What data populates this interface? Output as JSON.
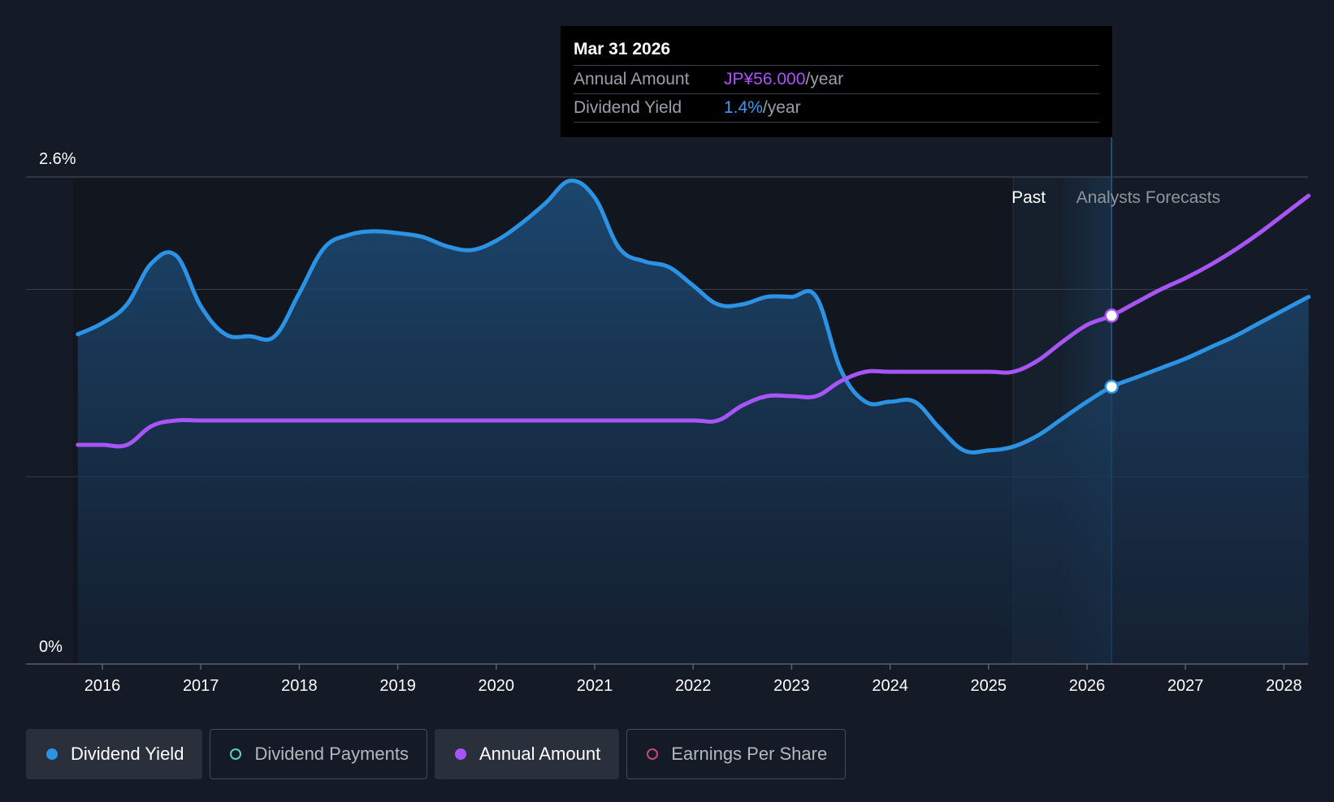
{
  "tooltip": {
    "date": "Mar 31 2026",
    "annual_amount_label": "Annual Amount",
    "annual_amount_value": "JP¥56.000",
    "dividend_yield_label": "Dividend Yield",
    "dividend_yield_value": "1.4%",
    "unit": "/year"
  },
  "legend": [
    {
      "label": "Dividend Yield",
      "color": "#2b92e4",
      "filled": true,
      "active": true
    },
    {
      "label": "Dividend Payments",
      "color": "#5ed0c0",
      "filled": false,
      "active": false
    },
    {
      "label": "Annual Amount",
      "color": "#a855f7",
      "filled": true,
      "active": true
    },
    {
      "label": "Earnings Per Share",
      "color": "#c8467a",
      "filled": false,
      "active": false
    }
  ],
  "colors": {
    "yield_line": "#2b92e4",
    "amount_line": "#a855f7",
    "grid": "#3a404b",
    "axis": "#5a606a",
    "text": "#ffffff"
  },
  "chart_data": {
    "type": "line",
    "title": "",
    "xlabel": "",
    "ylabel": "",
    "ylim": [
      0,
      2.6
    ],
    "y_tick_labels": [
      "0%",
      "2.6%"
    ],
    "x_ticks": [
      2016,
      2017,
      2018,
      2019,
      2020,
      2021,
      2022,
      2023,
      2024,
      2025,
      2026,
      2027,
      2028
    ],
    "xlim": [
      2015.75,
      2028.25
    ],
    "past_label": "Past",
    "forecast_label": "Analysts Forecasts",
    "past_end": 2025.25,
    "forecast_start": 2025.75,
    "marker_x": 2026.25,
    "series": [
      {
        "name": "Dividend Yield",
        "unit": "%",
        "area": true,
        "points": [
          [
            2015.75,
            1.76
          ],
          [
            2016.0,
            1.82
          ],
          [
            2016.25,
            1.92
          ],
          [
            2016.5,
            2.14
          ],
          [
            2016.75,
            2.18
          ],
          [
            2017.0,
            1.91
          ],
          [
            2017.25,
            1.76
          ],
          [
            2017.5,
            1.75
          ],
          [
            2017.75,
            1.75
          ],
          [
            2018.0,
            1.98
          ],
          [
            2018.25,
            2.22
          ],
          [
            2018.5,
            2.29
          ],
          [
            2018.75,
            2.31
          ],
          [
            2019.0,
            2.3
          ],
          [
            2019.25,
            2.28
          ],
          [
            2019.5,
            2.23
          ],
          [
            2019.75,
            2.21
          ],
          [
            2020.0,
            2.26
          ],
          [
            2020.25,
            2.35
          ],
          [
            2020.5,
            2.46
          ],
          [
            2020.75,
            2.58
          ],
          [
            2021.0,
            2.49
          ],
          [
            2021.25,
            2.22
          ],
          [
            2021.5,
            2.15
          ],
          [
            2021.75,
            2.12
          ],
          [
            2022.0,
            2.02
          ],
          [
            2022.25,
            1.92
          ],
          [
            2022.5,
            1.92
          ],
          [
            2022.75,
            1.96
          ],
          [
            2023.0,
            1.96
          ],
          [
            2023.25,
            1.96
          ],
          [
            2023.5,
            1.57
          ],
          [
            2023.75,
            1.4
          ],
          [
            2024.0,
            1.4
          ],
          [
            2024.25,
            1.4
          ],
          [
            2024.5,
            1.26
          ],
          [
            2024.75,
            1.14
          ],
          [
            2025.0,
            1.14
          ],
          [
            2025.25,
            1.16
          ],
          [
            2025.5,
            1.22
          ],
          [
            2025.75,
            1.31
          ],
          [
            2026.0,
            1.4
          ],
          [
            2026.25,
            1.48
          ],
          [
            2026.5,
            1.53
          ],
          [
            2026.75,
            1.58
          ],
          [
            2027.0,
            1.63
          ],
          [
            2027.25,
            1.69
          ],
          [
            2027.5,
            1.75
          ],
          [
            2027.75,
            1.82
          ],
          [
            2028.0,
            1.89
          ],
          [
            2028.25,
            1.96
          ]
        ]
      },
      {
        "name": "Annual Amount",
        "unit": "JP¥",
        "area": false,
        "points": [
          [
            2015.75,
            1.17
          ],
          [
            2016.0,
            1.17
          ],
          [
            2016.25,
            1.17
          ],
          [
            2016.5,
            1.27
          ],
          [
            2016.75,
            1.3
          ],
          [
            2017.0,
            1.3
          ],
          [
            2017.5,
            1.3
          ],
          [
            2018.0,
            1.3
          ],
          [
            2018.5,
            1.3
          ],
          [
            2019.0,
            1.3
          ],
          [
            2019.5,
            1.3
          ],
          [
            2020.0,
            1.3
          ],
          [
            2020.5,
            1.3
          ],
          [
            2021.0,
            1.3
          ],
          [
            2021.5,
            1.3
          ],
          [
            2022.0,
            1.3
          ],
          [
            2022.25,
            1.3
          ],
          [
            2022.5,
            1.38
          ],
          [
            2022.75,
            1.43
          ],
          [
            2023.0,
            1.43
          ],
          [
            2023.25,
            1.43
          ],
          [
            2023.5,
            1.51
          ],
          [
            2023.75,
            1.56
          ],
          [
            2024.0,
            1.56
          ],
          [
            2024.5,
            1.56
          ],
          [
            2025.0,
            1.56
          ],
          [
            2025.25,
            1.56
          ],
          [
            2025.5,
            1.62
          ],
          [
            2025.75,
            1.72
          ],
          [
            2026.0,
            1.81
          ],
          [
            2026.25,
            1.86
          ],
          [
            2026.5,
            1.93
          ],
          [
            2026.75,
            2.0
          ],
          [
            2027.0,
            2.06
          ],
          [
            2027.25,
            2.13
          ],
          [
            2027.5,
            2.21
          ],
          [
            2027.75,
            2.3
          ],
          [
            2028.0,
            2.4
          ],
          [
            2028.25,
            2.5
          ]
        ]
      }
    ]
  }
}
